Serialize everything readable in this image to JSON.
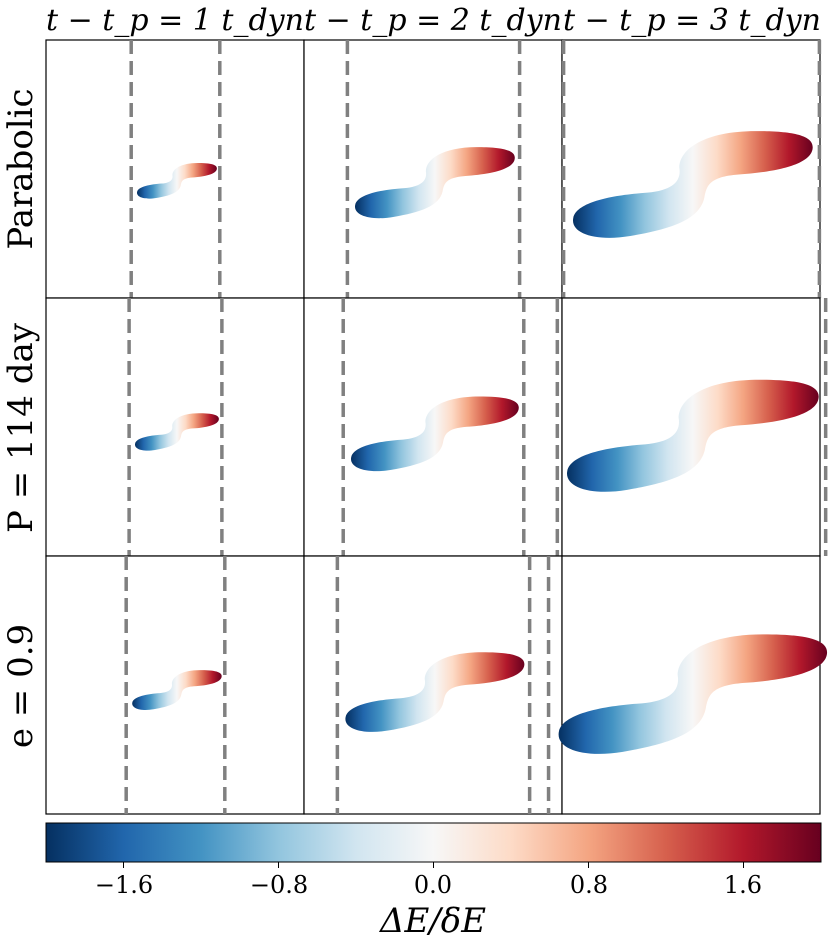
{
  "chart_data": {
    "type": "heatmap",
    "column_titles": [
      "t − t_p = 1 t_dyn",
      "t − t_p = 2 t_dyn",
      "t − t_p = 3 t_dyn"
    ],
    "row_labels": [
      "Parabolic",
      "P = 114 day",
      "e = 0.9"
    ],
    "colorbar": {
      "label": "ΔE/δE",
      "range": [
        -2.0,
        2.0
      ],
      "ticks": [
        -1.6,
        -0.8,
        0.0,
        0.8,
        1.6
      ],
      "tick_labels": [
        "−1.6",
        "−0.8",
        "0.0",
        "0.8",
        "1.6"
      ],
      "colormap": "RdBu_r",
      "colors": [
        "#053061",
        "#2166ac",
        "#4393c3",
        "#92c5de",
        "#d1e5f0",
        "#f7f7f7",
        "#fddbc7",
        "#f4a582",
        "#d6604d",
        "#b2182b",
        "#67001f"
      ]
    },
    "stream_scale_by_time": [
      1,
      2,
      3
    ],
    "stream_scale_by_row": [
      1.0,
      1.05,
      1.12
    ],
    "dashed_line_color": "#808080"
  }
}
